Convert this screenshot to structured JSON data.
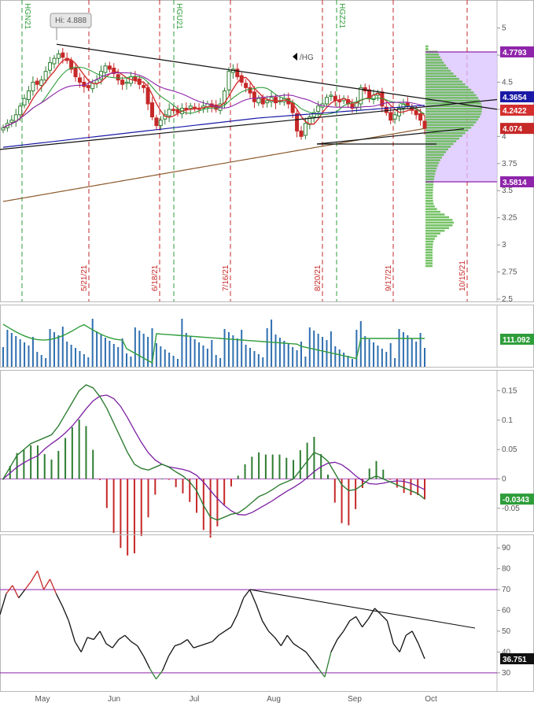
{
  "symbol": "/HG",
  "hi_label": "Hi: 4.888",
  "colors": {
    "up": "#2e7d32",
    "down": "#c62828",
    "green": "#2e9d3a",
    "red": "#d32f2f",
    "blue": "#1a1aa6",
    "purple": "#8e24aa",
    "brown": "#8b5a2b",
    "violet": "#7b1fa2",
    "volume": "#2f6fb0",
    "profile": "#66bb55",
    "value_area": "#d9c2ff"
  },
  "chart_data": [
    {
      "type": "candlestick",
      "panel": "price",
      "ylim": [
        2.5,
        5.2
      ],
      "y_ticks": [
        "5",
        "4.75",
        "4.5",
        "4.25",
        "4",
        "3.75",
        "3.5",
        "3.25",
        "3",
        "2.75",
        "2.5"
      ],
      "price_labels": [
        {
          "text": "4.7793",
          "value": 4.7793,
          "color": "#8e24aa"
        },
        {
          "text": "4.3654",
          "value": 4.3654,
          "color": "#1a1aa6"
        },
        {
          "text": "4.2422",
          "value": 4.2422,
          "color": "#d32f2f"
        },
        {
          "text": "4.074",
          "value": 4.074,
          "color": "#c62828"
        },
        {
          "text": "3.5814",
          "value": 3.5814,
          "color": "#8e24aa"
        }
      ],
      "expiry_markers": [
        "HGN21",
        "HGU21",
        "HGZ21"
      ],
      "date_markers": [
        "5/21/21",
        "6/18/21",
        "7/16/21",
        "8/20/21",
        "9/17/21",
        "10/15/21"
      ],
      "close": [
        4.08,
        4.12,
        4.15,
        4.2,
        4.28,
        4.35,
        4.42,
        4.5,
        4.48,
        4.52,
        4.6,
        4.68,
        4.72,
        4.76,
        4.73,
        4.7,
        4.62,
        4.55,
        4.5,
        4.46,
        4.45,
        4.49,
        4.52,
        4.6,
        4.65,
        4.62,
        4.58,
        4.52,
        4.48,
        4.5,
        4.55,
        4.52,
        4.48,
        4.45,
        4.3,
        4.18,
        4.1,
        4.15,
        4.2,
        4.25,
        4.24,
        4.22,
        4.26,
        4.25,
        4.28,
        4.26,
        4.25,
        4.28,
        4.3,
        4.28,
        4.25,
        4.3,
        4.42,
        4.6,
        4.62,
        4.55,
        4.5,
        4.45,
        4.4,
        4.32,
        4.35,
        4.3,
        4.33,
        4.36,
        4.31,
        4.33,
        4.35,
        4.3,
        4.22,
        4.05,
        4.0,
        4.12,
        4.18,
        4.22,
        4.28,
        4.3,
        4.36,
        4.38,
        4.33,
        4.32,
        4.35,
        4.3,
        4.26,
        4.31,
        4.45,
        4.42,
        4.35,
        4.38,
        4.4,
        4.28,
        4.22,
        4.15,
        4.2,
        4.26,
        4.3,
        4.28,
        4.24,
        4.2,
        4.15,
        4.074
      ],
      "ma_20_last": 4.2422,
      "ma_50_last": 4.3654,
      "value_area_high": 4.7793,
      "value_area_low": 3.5814,
      "hi": 4.888
    },
    {
      "type": "bar",
      "panel": "volume",
      "last_label": "111.092",
      "note": "volume bars with green moving average"
    },
    {
      "type": "line",
      "panel": "macd",
      "ylim": [
        -0.085,
        0.18
      ],
      "y_ticks": [
        "0.15",
        "0.1",
        "0.05",
        "0",
        "-0.05"
      ],
      "last_label": "-0.0343",
      "macd": [
        0.0,
        0.02,
        0.04,
        0.05,
        0.06,
        0.065,
        0.07,
        0.075,
        0.09,
        0.11,
        0.13,
        0.15,
        0.16,
        0.155,
        0.14,
        0.12,
        0.095,
        0.07,
        0.045,
        0.025,
        0.018,
        0.015,
        0.02,
        0.025,
        0.02,
        0.012,
        0.005,
        -0.005,
        -0.02,
        -0.045,
        -0.065,
        -0.07,
        -0.065,
        -0.06,
        -0.058,
        -0.05,
        -0.04,
        -0.03,
        -0.025,
        -0.018,
        -0.01,
        -0.005,
        0.0,
        0.015,
        0.03,
        0.045,
        0.04,
        0.03,
        0.01,
        -0.01,
        -0.02,
        -0.018,
        -0.01,
        0.0,
        0.005,
        0.0,
        -0.005,
        -0.01,
        -0.015,
        -0.02,
        -0.025,
        -0.034
      ]
    },
    {
      "type": "line",
      "panel": "rsi",
      "ylim": [
        22,
        95
      ],
      "y_ticks": [
        "90",
        "80",
        "70",
        "60",
        "50",
        "40",
        "30"
      ],
      "last_label": "36.751",
      "overbought": 70,
      "oversold": 30,
      "rsi": [
        58,
        68,
        72,
        66,
        70,
        74,
        79,
        70,
        75,
        68,
        62,
        55,
        45,
        40,
        47,
        46,
        50,
        44,
        42,
        46,
        48,
        45,
        43,
        38,
        32,
        27,
        31,
        38,
        43,
        44,
        46,
        42,
        43,
        44,
        45,
        48,
        50,
        52,
        58,
        66,
        70,
        63,
        55,
        50,
        47,
        43,
        48,
        44,
        42,
        40,
        36,
        32,
        28,
        40,
        46,
        50,
        55,
        57,
        52,
        56,
        61,
        58,
        55,
        44,
        40,
        48,
        50,
        44,
        36.751
      ],
      "x_labels": [
        "May",
        "Jun",
        "Jul",
        "Aug",
        "Sep",
        "Oct"
      ]
    }
  ]
}
